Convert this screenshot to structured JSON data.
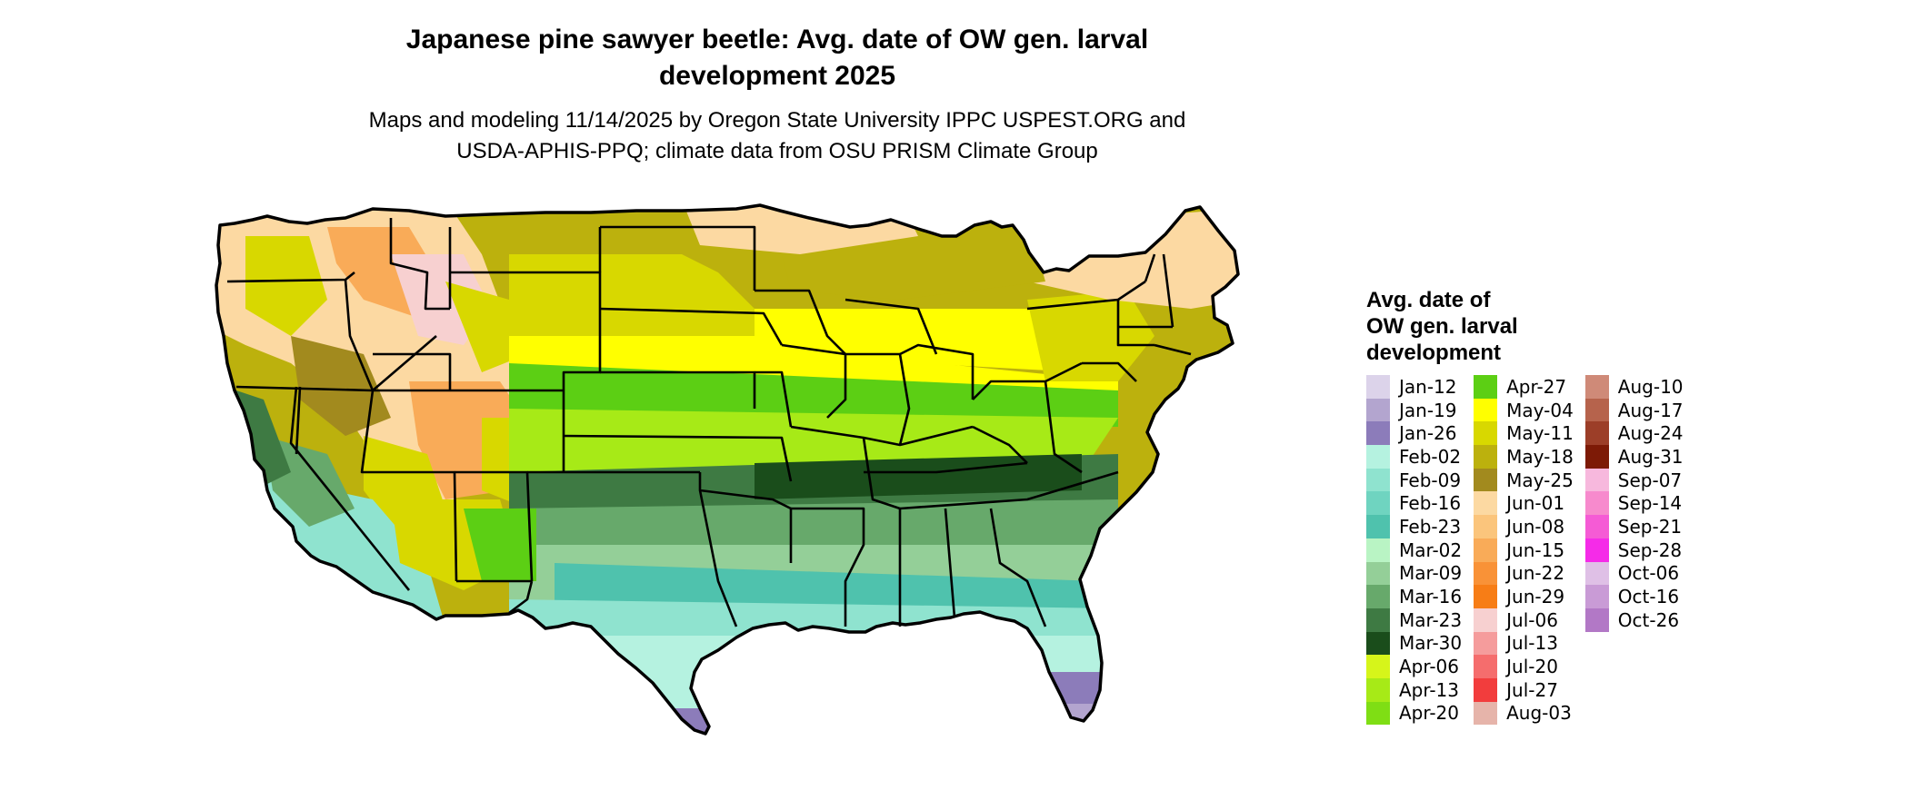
{
  "header": {
    "title": "Japanese pine sawyer beetle: Avg. date of OW gen. larval\ndevelopment 2025",
    "subtitle": "Maps and modeling 11/14/2025 by Oregon State University IPPC USPEST.ORG and\nUSDA-APHIS-PPQ; climate data from OSU PRISM Climate Group"
  },
  "legend": {
    "title": "Avg. date of\nOW gen. larval\ndevelopment",
    "columns": [
      [
        {
          "label": "Jan-12",
          "color": "#dcd3ea"
        },
        {
          "label": "Jan-19",
          "color": "#b3a5cf"
        },
        {
          "label": "Jan-26",
          "color": "#8c7cba"
        },
        {
          "label": "Feb-02",
          "color": "#b5f2e0"
        },
        {
          "label": "Feb-09",
          "color": "#8fe3cf"
        },
        {
          "label": "Feb-16",
          "color": "#6fd4c0"
        },
        {
          "label": "Feb-23",
          "color": "#4fc2ad"
        },
        {
          "label": "Mar-02",
          "color": "#b9f4c4"
        },
        {
          "label": "Mar-09",
          "color": "#94cf98"
        },
        {
          "label": "Mar-16",
          "color": "#67a96b"
        },
        {
          "label": "Mar-23",
          "color": "#3e7a43"
        },
        {
          "label": "Mar-30",
          "color": "#1a4d1b"
        },
        {
          "label": "Apr-06",
          "color": "#d6f51a"
        },
        {
          "label": "Apr-13",
          "color": "#a7ea17"
        },
        {
          "label": "Apr-20",
          "color": "#7fde14"
        }
      ],
      [
        {
          "label": "Apr-27",
          "color": "#5ccf14"
        },
        {
          "label": "May-04",
          "color": "#ffff00"
        },
        {
          "label": "May-11",
          "color": "#d8d800"
        },
        {
          "label": "May-18",
          "color": "#bcb10d"
        },
        {
          "label": "May-25",
          "color": "#a28a1e"
        },
        {
          "label": "Jun-01",
          "color": "#fcd9a2"
        },
        {
          "label": "Jun-08",
          "color": "#fbc57c"
        },
        {
          "label": "Jun-15",
          "color": "#f9ab58"
        },
        {
          "label": "Jun-22",
          "color": "#f99237"
        },
        {
          "label": "Jun-29",
          "color": "#f77d16"
        },
        {
          "label": "Jul-06",
          "color": "#f7d0d0"
        },
        {
          "label": "Jul-13",
          "color": "#f59c9c"
        },
        {
          "label": "Jul-20",
          "color": "#f56d6d"
        },
        {
          "label": "Jul-27",
          "color": "#f23d3d"
        },
        {
          "label": "Aug-03",
          "color": "#e6b4aa"
        }
      ],
      [
        {
          "label": "Aug-10",
          "color": "#cf8a78"
        },
        {
          "label": "Aug-17",
          "color": "#b6634c"
        },
        {
          "label": "Aug-24",
          "color": "#9c3e28"
        },
        {
          "label": "Aug-31",
          "color": "#7d1a06"
        },
        {
          "label": "Sep-07",
          "color": "#f7b8dd"
        },
        {
          "label": "Sep-14",
          "color": "#f78acd"
        },
        {
          "label": "Sep-21",
          "color": "#f55bd5"
        },
        {
          "label": "Sep-28",
          "color": "#f52be8"
        },
        {
          "label": "Oct-06",
          "color": "#dfc0e6"
        },
        {
          "label": "Oct-16",
          "color": "#c99bd6"
        },
        {
          "label": "Oct-26",
          "color": "#b278c6"
        }
      ]
    ]
  }
}
